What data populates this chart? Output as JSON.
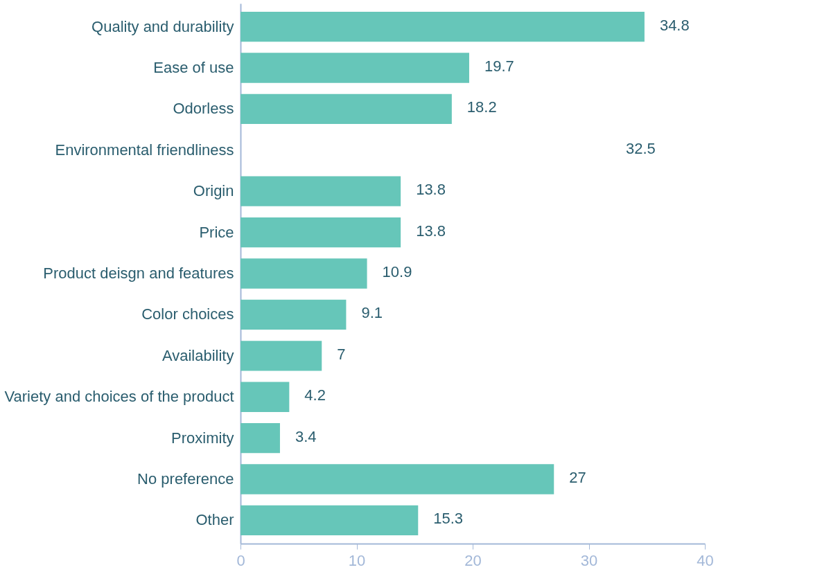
{
  "chart_data": {
    "type": "bar",
    "orientation": "horizontal",
    "categories": [
      "Quality and durability",
      "Ease of use",
      "Odorless",
      "Environmental friendliness",
      "Origin",
      "Price",
      "Product deisgn and features",
      "Color choices",
      "Availability",
      "Variety and choices of the product",
      "Proximity",
      "No preference",
      "Other"
    ],
    "values": [
      34.8,
      19.7,
      18.2,
      null,
      13.8,
      13.8,
      10.9,
      9.1,
      7,
      4.2,
      3.4,
      27,
      15.3
    ],
    "colors": [
      "#66c6b9",
      "#66c6b9",
      "#66c6b9",
      "#ffffff",
      "#66c6b9",
      "#66c6b9",
      "#66c6b9",
      "#66c6b9",
      "#66c6b9",
      "#66c6b9",
      "#66c6b9",
      "#66c6b9",
      "#66c6b9"
    ],
    "annotations": [
      "32.5"
    ],
    "xlim": [
      0,
      40
    ],
    "xticks": [
      0,
      10,
      20,
      30,
      40
    ],
    "grid": false,
    "data_labels": true
  }
}
